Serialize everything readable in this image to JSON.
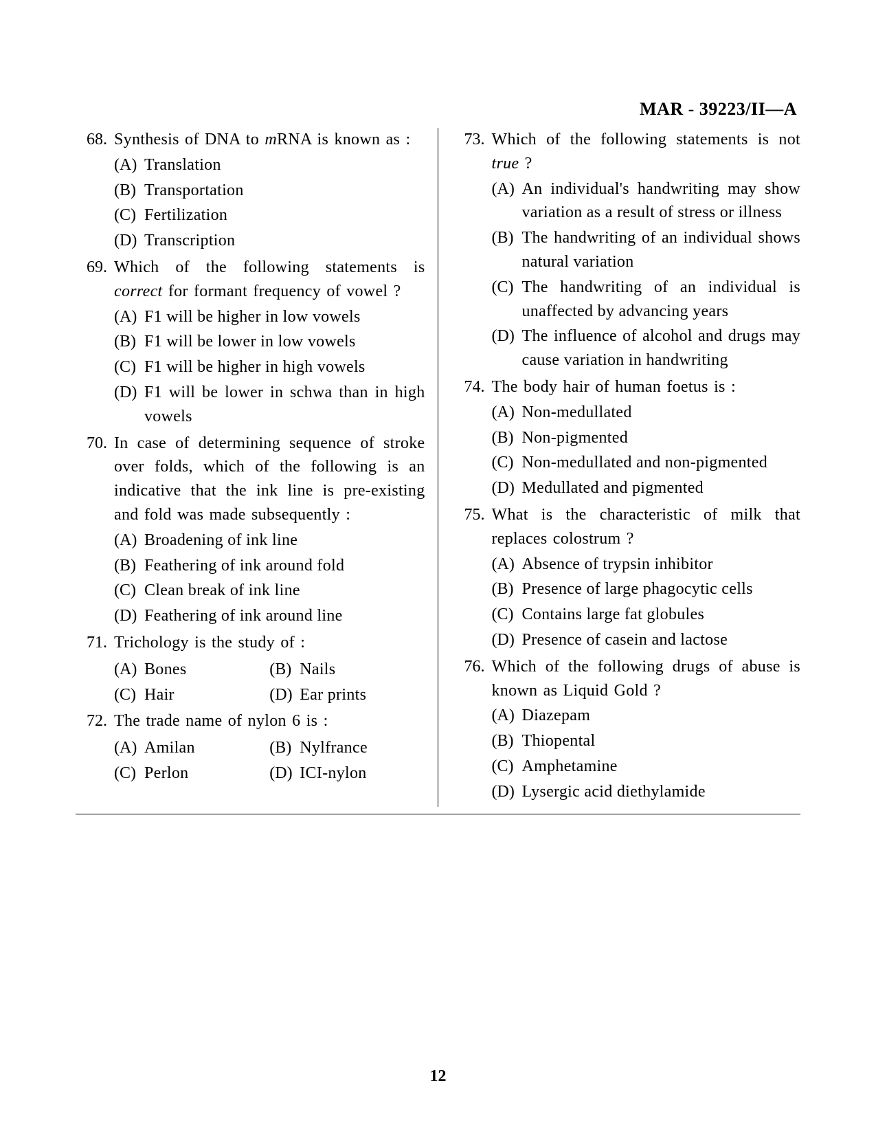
{
  "header": "MAR - 39223/II—A",
  "page_number": "12",
  "left": [
    {
      "num": "68.",
      "text_html": "Synthesis of DNA to <span class='italic'>m</span>RNA is known as :",
      "options": [
        {
          "label": "(A)",
          "text": "Translation"
        },
        {
          "label": "(B)",
          "text": "Transportation"
        },
        {
          "label": "(C)",
          "text": "Fertilization"
        },
        {
          "label": "(D)",
          "text": "Transcription"
        }
      ]
    },
    {
      "num": "69.",
      "text_html": "Which of the following statements is <span class='italic'>correct</span> for formant frequency of vowel ?",
      "options": [
        {
          "label": "(A)",
          "text": "F1 will be higher in low vowels"
        },
        {
          "label": "(B)",
          "text": "F1 will be lower in low vowels"
        },
        {
          "label": "(C)",
          "text": "F1 will be higher in high vowels"
        },
        {
          "label": "(D)",
          "text": "F1 will be lower in schwa than in high vowels"
        }
      ]
    },
    {
      "num": "70.",
      "text_html": "In case of determining sequence of stroke over folds, which of the following is an indicative that the ink line is pre-existing and fold was made subsequently :",
      "options": [
        {
          "label": "(A)",
          "text": "Broadening of ink line"
        },
        {
          "label": "(B)",
          "text": "Feathering of ink around fold"
        },
        {
          "label": "(C)",
          "text": "Clean break of ink line"
        },
        {
          "label": "(D)",
          "text": "Feathering of ink around line"
        }
      ]
    },
    {
      "num": "71.",
      "text_html": "Trichology is the study of :",
      "inline": true,
      "options": [
        {
          "label": "(A)",
          "text": "Bones"
        },
        {
          "label": "(B)",
          "text": "Nails"
        },
        {
          "label": "(C)",
          "text": "Hair"
        },
        {
          "label": "(D)",
          "text": "Ear prints"
        }
      ]
    },
    {
      "num": "72.",
      "text_html": "The trade name of nylon 6 is :",
      "inline": true,
      "options": [
        {
          "label": "(A)",
          "text": "Amilan"
        },
        {
          "label": "(B)",
          "text": "Nylfrance"
        },
        {
          "label": "(C)",
          "text": "Perlon"
        },
        {
          "label": "(D)",
          "text": "ICI-nylon"
        }
      ]
    }
  ],
  "right": [
    {
      "num": "73.",
      "text_html": "Which of the following statements is not <span class='italic'>true</span> ?",
      "options": [
        {
          "label": "(A)",
          "text": "An individual's handwriting may show variation as a result of stress or illness"
        },
        {
          "label": "(B)",
          "text": "The handwriting of an individual shows natural variation"
        },
        {
          "label": "(C)",
          "text": "The handwriting of an individual is unaffected by advancing years"
        },
        {
          "label": "(D)",
          "text": "The influence of alcohol and drugs may cause variation in handwriting"
        }
      ]
    },
    {
      "num": "74.",
      "text_html": "The body hair of human foetus is :",
      "options": [
        {
          "label": "(A)",
          "text": "Non-medullated"
        },
        {
          "label": "(B)",
          "text": "Non-pigmented"
        },
        {
          "label": "(C)",
          "text": "Non-medullated and non-pigmented"
        },
        {
          "label": "(D)",
          "text": "Medullated and pigmented"
        }
      ]
    },
    {
      "num": "75.",
      "text_html": "What is the characteristic of milk that replaces colostrum ?",
      "options": [
        {
          "label": "(A)",
          "text": "Absence of trypsin inhibitor"
        },
        {
          "label": "(B)",
          "text": "Presence of large phagocytic cells"
        },
        {
          "label": "(C)",
          "text": "Contains large fat globules"
        },
        {
          "label": "(D)",
          "text": "Presence of casein and lactose"
        }
      ]
    },
    {
      "num": "76.",
      "text_html": "Which of the following drugs of abuse is known as Liquid Gold ?",
      "options": [
        {
          "label": "(A)",
          "text": "Diazepam"
        },
        {
          "label": "(B)",
          "text": "Thiopental"
        },
        {
          "label": "(C)",
          "text": "Amphetamine"
        },
        {
          "label": "(D)",
          "text": "Lysergic acid diethylamide"
        }
      ]
    }
  ]
}
